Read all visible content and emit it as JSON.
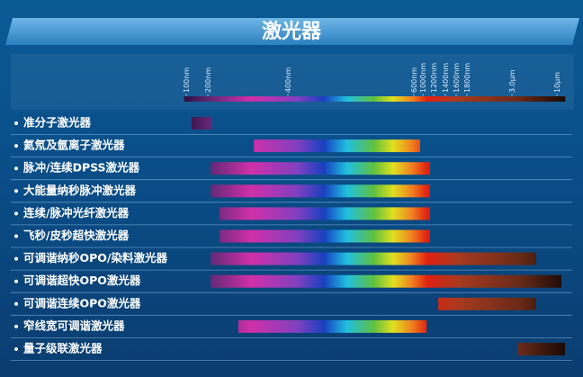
{
  "chart_data": {
    "type": "range",
    "title": "激光器",
    "categories": [
      "准分子激光器",
      "氦氖及氩离子激光器",
      "脉冲/连续DPSS激光器",
      "大能量纳秒脉冲激光器",
      "连续/脉冲光纤激光器",
      "飞秒/皮秒超快激光器",
      "可调谐纳秒OPO/染料激光器",
      "可调谐超快OPO激光器",
      "可调谐连续OPO激光器",
      "窄线宽可调谐激光器",
      "量子级联激光器"
    ],
    "values": [
      [
        125,
        210
      ],
      [
        315,
        880
      ],
      [
        207,
        1130
      ],
      [
        207,
        1130
      ],
      [
        229,
        1130
      ],
      [
        229,
        1130
      ],
      [
        207,
        6780
      ],
      [
        207,
        10700
      ],
      [
        1280,
        6780
      ],
      [
        276,
        1070
      ],
      [
        3980,
        11260
      ]
    ],
    "xlim": [
      90,
      11300
    ],
    "xticks": [
      {
        "value": 100,
        "label": "100nm"
      },
      {
        "value": 200,
        "label": "200nm"
      },
      {
        "value": 400,
        "label": "400nm"
      },
      {
        "value": 600,
        "label": "600nm"
      },
      {
        "value": 1000,
        "label": "1000nm"
      },
      {
        "value": 1200,
        "label": "1200nm"
      },
      {
        "value": 1400,
        "label": "1400nm"
      },
      {
        "value": 1600,
        "label": "1600nm"
      },
      {
        "value": 1800,
        "label": "1800nm"
      },
      {
        "value": 3000,
        "label": "3.0μm"
      },
      {
        "value": 10000,
        "label": "10μm"
      }
    ]
  }
}
